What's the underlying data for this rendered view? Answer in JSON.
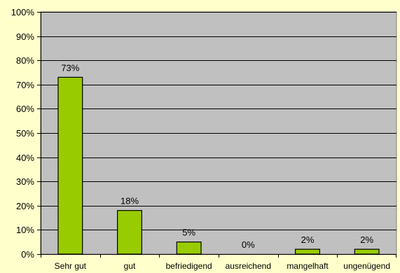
{
  "chart_data": {
    "type": "bar",
    "title": "",
    "xlabel": "",
    "ylabel": "",
    "categories": [
      "Sehr gut",
      "gut",
      "befriedigend",
      "ausreichend",
      "mangelhaft",
      "ungenügend"
    ],
    "values": [
      73,
      18,
      5,
      0,
      2,
      2
    ],
    "value_labels": [
      "73%",
      "18%",
      "5%",
      "0%",
      "2%",
      "2%"
    ],
    "ylim": [
      0,
      100
    ],
    "yticks": [
      0,
      10,
      20,
      30,
      40,
      50,
      60,
      70,
      80,
      90,
      100
    ],
    "ytick_labels": [
      "0%",
      "10%",
      "20%",
      "30%",
      "40%",
      "50%",
      "60%",
      "70%",
      "80%",
      "90%",
      "100%"
    ],
    "grid": true,
    "legend": "none",
    "colors": {
      "page_background": "#ffffcc",
      "plot_background": "#c0c0c0",
      "bar_fill": "#99cc00",
      "bar_stroke": "#000000",
      "grid": "#000000"
    }
  }
}
